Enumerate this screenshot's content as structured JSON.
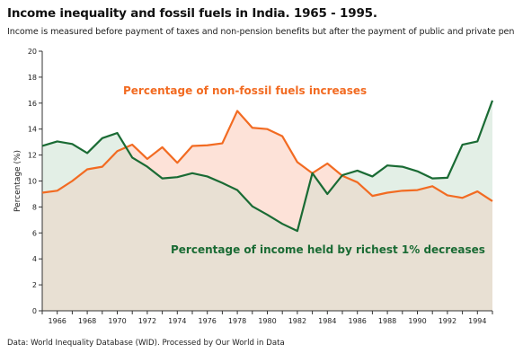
{
  "header": {
    "title": "Income inequality and fossil fuels in India. 1965 - 1995.",
    "subtitle": "Income is measured before payment of taxes and non-pension benefits but after the payment of public and private pensions."
  },
  "footer": {
    "source": "Data: World Inequality Database (WID). Processed by Our World in Data"
  },
  "chart_data": {
    "type": "line",
    "title": "Income inequality and fossil fuels in India. 1965 - 1995.",
    "xlabel": "",
    "ylabel": "Percentage (%)",
    "xlim": [
      1965,
      1995
    ],
    "ylim": [
      0,
      20
    ],
    "x_ticks": [
      1966,
      1968,
      1970,
      1972,
      1974,
      1976,
      1978,
      1980,
      1982,
      1984,
      1986,
      1988,
      1990,
      1992,
      1994
    ],
    "y_ticks": [
      0,
      2,
      4,
      6,
      8,
      10,
      12,
      14,
      16,
      18,
      20
    ],
    "grid": false,
    "legend": "none",
    "x": [
      1965,
      1966,
      1967,
      1968,
      1969,
      1970,
      1971,
      1972,
      1973,
      1974,
      1975,
      1976,
      1977,
      1978,
      1979,
      1980,
      1981,
      1982,
      1983,
      1984,
      1985,
      1986,
      1987,
      1988,
      1989,
      1990,
      1991,
      1992,
      1993,
      1994,
      1995
    ],
    "series": [
      {
        "key": "non_fossil",
        "color": "#f26b22",
        "values": [
          9.1,
          9.25,
          10.0,
          10.9,
          11.1,
          12.3,
          12.8,
          11.7,
          12.6,
          11.4,
          12.7,
          12.75,
          12.9,
          15.4,
          14.1,
          14.0,
          13.45,
          11.45,
          10.6,
          11.35,
          10.4,
          9.9,
          8.85,
          9.1,
          9.25,
          9.3,
          9.6,
          8.9,
          8.7,
          9.2,
          8.45
        ]
      },
      {
        "key": "top1_income",
        "color": "#1a6b34",
        "values": [
          12.7,
          13.05,
          12.85,
          12.15,
          13.3,
          13.7,
          11.8,
          11.1,
          10.2,
          10.3,
          10.6,
          10.35,
          9.85,
          9.3,
          8.05,
          7.4,
          6.7,
          6.15,
          10.6,
          9.0,
          10.45,
          10.8,
          10.35,
          11.2,
          11.1,
          10.75,
          10.2,
          10.25,
          12.8,
          13.05,
          16.2
        ]
      }
    ],
    "annotations": [
      {
        "text": "Percentage of non-fossil fuels increases",
        "color": "#f26b22"
      },
      {
        "text": "Percentage of income held by richest 1% decreases",
        "color": "#1a6b34"
      }
    ],
    "fill_colors": {
      "base": "#e8e0d3",
      "orange_gap": "#fde2d8",
      "green_gap": "#e3efe6"
    }
  }
}
